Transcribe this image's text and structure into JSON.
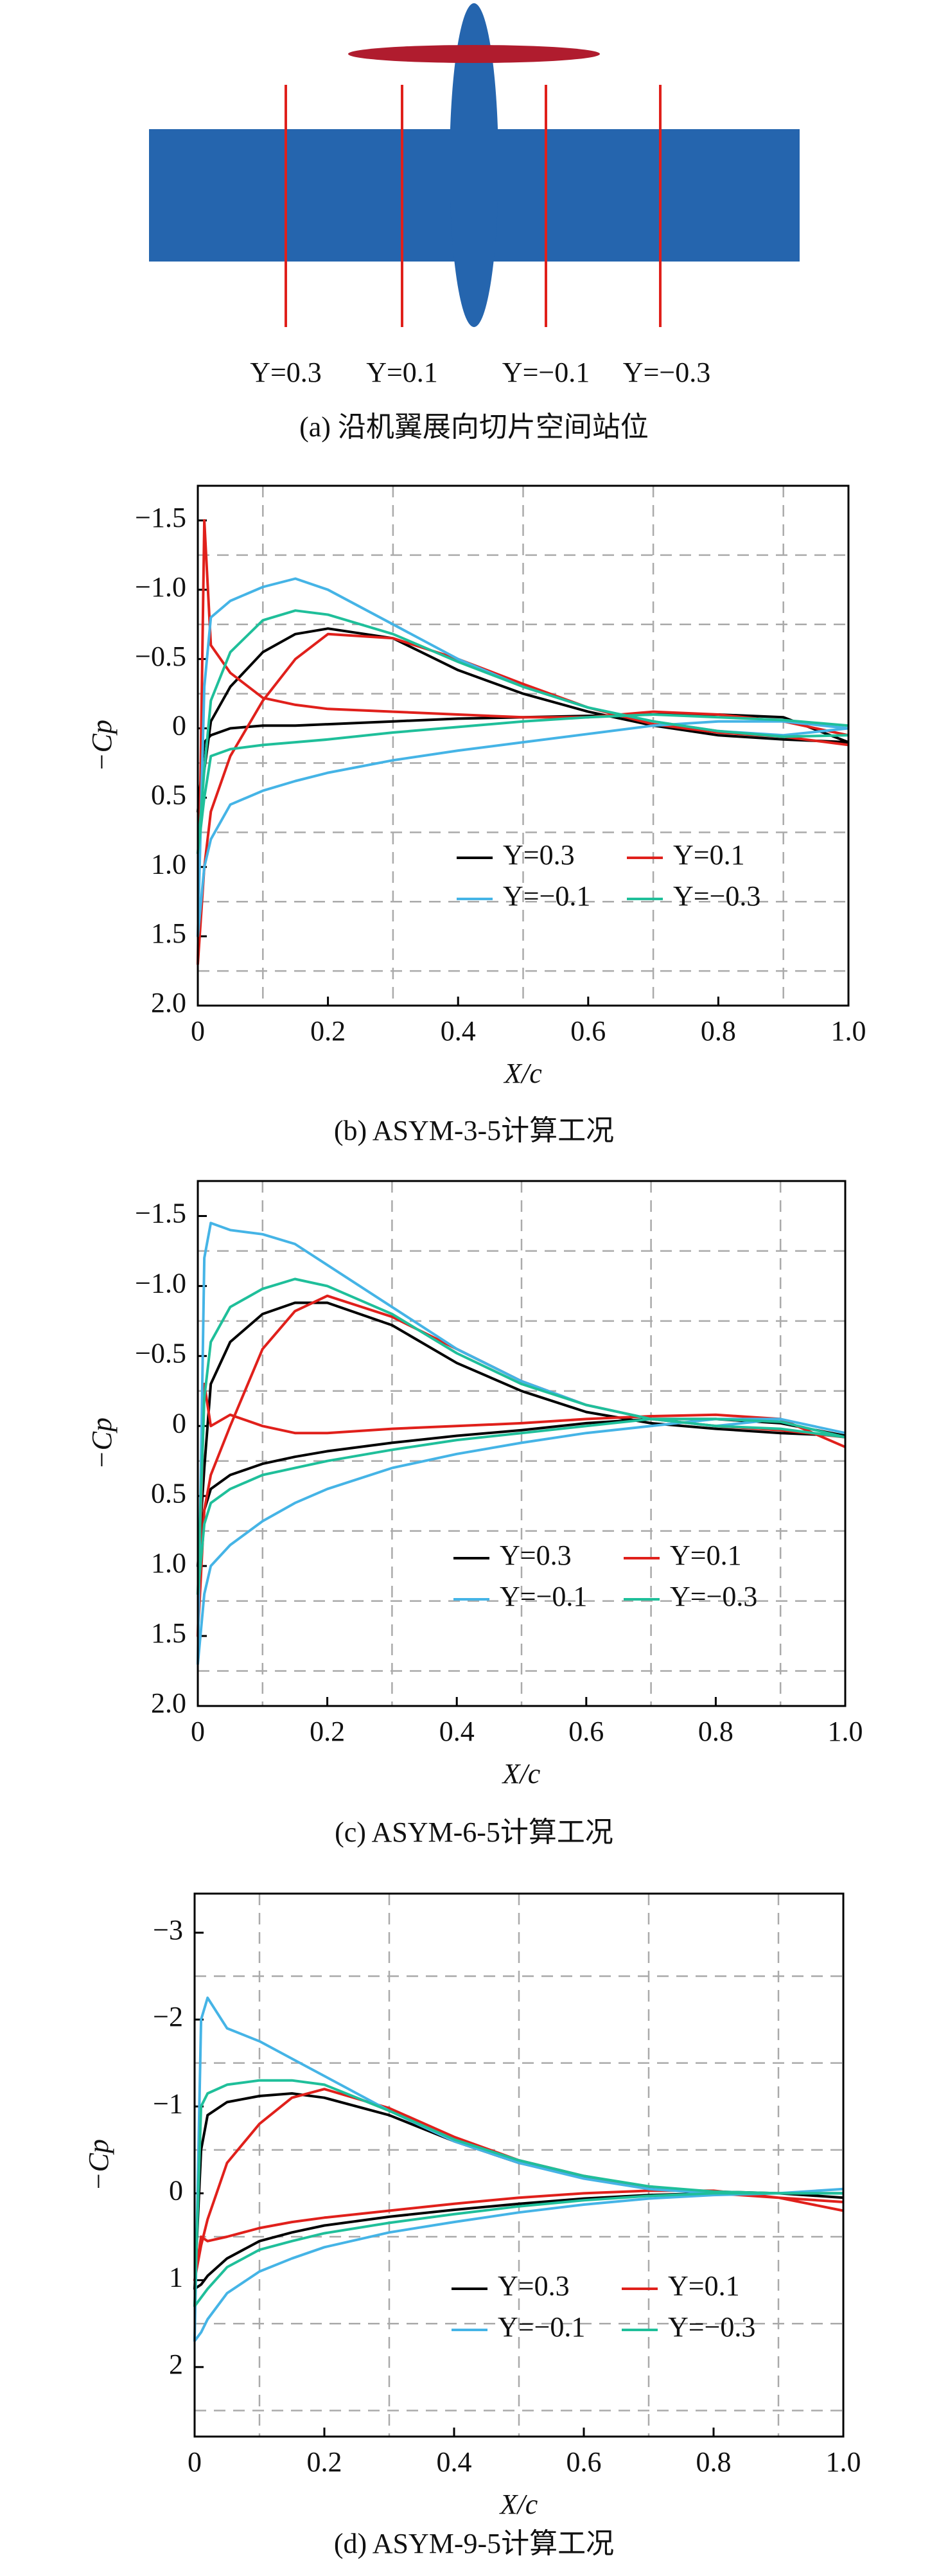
{
  "figure_a": {
    "labels": [
      "Y=0.3",
      "Y=0.1",
      "Y=−0.1",
      "Y=−0.3"
    ],
    "caption": "(a) 沿机翼展向切片空间站位"
  },
  "chart_data": [
    {
      "type": "line",
      "caption": "(b) ASYM-3-5计算工况",
      "xlabel": "X/c",
      "ylabel": "−Cp",
      "x": [
        1.0,
        0.9,
        0.8,
        0.7,
        0.6,
        0.5,
        0.4,
        0.3,
        0.2,
        0.15,
        0.1,
        0.05,
        0.02,
        0.01,
        0,
        0.01,
        0.02,
        0.05,
        0.1,
        0.15,
        0.2,
        0.3,
        0.4,
        0.5,
        0.6,
        0.7,
        0.8,
        0.9,
        1.0
      ],
      "xlim": [
        0,
        1
      ],
      "xticks": [
        0,
        0.2,
        0.4,
        0.6,
        0.8,
        {
          "value": 1,
          "label": "1.0"
        }
      ],
      "ylim": [
        2.0,
        -1.75
      ],
      "yticks": [
        {
          "value": -1.5,
          "label": "−1.5"
        },
        {
          "value": -1.0,
          "label": "−1.0"
        },
        {
          "value": -0.5,
          "label": "−0.5"
        },
        0,
        0.5,
        {
          "value": 1,
          "label": "1.0"
        },
        1.5,
        {
          "value": 2,
          "label": "2.0"
        }
      ],
      "xgrid": [
        0.1,
        0.3,
        0.5,
        0.7,
        0.9
      ],
      "ygrid": [
        -1.25,
        -0.75,
        -0.25,
        0.25,
        0.75,
        1.25,
        1.75
      ],
      "legend": "lower right",
      "series": [
        {
          "name": "Y=0.3",
          "color": "#000000",
          "values": [
            0.1,
            -0.08,
            -0.1,
            -0.1,
            -0.09,
            -0.08,
            -0.07,
            -0.05,
            -0.03,
            -0.02,
            -0.02,
            0.0,
            0.05,
            0.1,
            0.6,
            0.3,
            -0.05,
            -0.3,
            -0.55,
            -0.68,
            -0.72,
            -0.65,
            -0.42,
            -0.25,
            -0.12,
            -0.02,
            0.05,
            0.08,
            0.1
          ]
        },
        {
          "name": "Y=0.1",
          "color": "#e0201b",
          "values": [
            0.05,
            -0.05,
            -0.1,
            -0.12,
            -0.08,
            -0.08,
            -0.1,
            -0.12,
            -0.14,
            -0.17,
            -0.22,
            -0.4,
            -0.6,
            -1.5,
            1.7,
            1.0,
            0.6,
            0.2,
            -0.2,
            -0.5,
            -0.68,
            -0.65,
            -0.5,
            -0.32,
            -0.15,
            -0.03,
            0.03,
            0.06,
            0.12
          ]
        },
        {
          "name": "Y=−0.1",
          "color": "#45b4e6",
          "values": [
            0.0,
            -0.05,
            -0.05,
            -0.02,
            0.04,
            0.1,
            0.16,
            0.23,
            0.32,
            0.38,
            0.45,
            0.55,
            0.8,
            1.0,
            1.5,
            -0.3,
            -0.8,
            -0.92,
            -1.02,
            -1.08,
            -1.0,
            -0.75,
            -0.5,
            -0.3,
            -0.15,
            -0.05,
            0.02,
            0.05,
            0.0
          ]
        },
        {
          "name": "Y=−0.3",
          "color": "#1fbf9a",
          "values": [
            -0.02,
            -0.06,
            -0.08,
            -0.1,
            -0.08,
            -0.05,
            -0.01,
            0.03,
            0.08,
            0.1,
            0.12,
            0.15,
            0.2,
            0.5,
            0.9,
            0.3,
            -0.2,
            -0.55,
            -0.78,
            -0.85,
            -0.82,
            -0.68,
            -0.48,
            -0.3,
            -0.15,
            -0.05,
            0.02,
            0.06,
            0.05
          ]
        }
      ]
    },
    {
      "type": "line",
      "caption": "(c) ASYM-6-5计算工况",
      "xlabel": "X/c",
      "ylabel": "−Cp",
      "x": [
        1.0,
        0.9,
        0.8,
        0.7,
        0.6,
        0.5,
        0.4,
        0.3,
        0.2,
        0.15,
        0.1,
        0.05,
        0.02,
        0.01,
        0,
        0.01,
        0.02,
        0.05,
        0.1,
        0.15,
        0.2,
        0.3,
        0.4,
        0.5,
        0.6,
        0.7,
        0.8,
        0.9,
        1.0
      ],
      "xlim": [
        0,
        1
      ],
      "xticks": [
        0,
        0.2,
        0.4,
        0.6,
        0.8,
        {
          "value": 1,
          "label": "1.0"
        }
      ],
      "ylim": [
        2.0,
        -1.75
      ],
      "yticks": [
        {
          "value": -1.5,
          "label": "−1.5"
        },
        {
          "value": -1.0,
          "label": "−1.0"
        },
        {
          "value": -0.5,
          "label": "−0.5"
        },
        0,
        0.5,
        {
          "value": 1,
          "label": "1.0"
        },
        1.5,
        {
          "value": 2,
          "label": "2.0"
        }
      ],
      "xgrid": [
        0.1,
        0.3,
        0.5,
        0.7,
        0.9
      ],
      "ygrid": [
        -1.25,
        -0.75,
        -0.25,
        0.25,
        0.75,
        1.25,
        1.75
      ],
      "legend": "lower right",
      "series": [
        {
          "name": "Y=0.3",
          "color": "#000000",
          "values": [
            0.07,
            -0.02,
            -0.05,
            -0.05,
            -0.02,
            0.03,
            0.07,
            0.12,
            0.18,
            0.22,
            0.27,
            0.35,
            0.45,
            0.6,
            1.0,
            0.3,
            -0.3,
            -0.6,
            -0.8,
            -0.88,
            -0.88,
            -0.72,
            -0.45,
            -0.25,
            -0.1,
            -0.02,
            0.02,
            0.05,
            0.07
          ]
        },
        {
          "name": "Y=0.1",
          "color": "#e0201b",
          "values": [
            0.15,
            -0.05,
            -0.08,
            -0.07,
            -0.05,
            -0.02,
            0.0,
            0.02,
            0.05,
            0.05,
            0.0,
            -0.08,
            0.0,
            -0.3,
            1.5,
            0.6,
            0.35,
            0.0,
            -0.55,
            -0.82,
            -0.93,
            -0.78,
            -0.55,
            -0.32,
            -0.15,
            -0.05,
            0.0,
            0.03,
            0.08
          ]
        },
        {
          "name": "Y=−0.1",
          "color": "#45b4e6",
          "values": [
            0.05,
            -0.05,
            -0.05,
            0.0,
            0.05,
            0.12,
            0.2,
            0.3,
            0.45,
            0.55,
            0.68,
            0.85,
            1.0,
            1.2,
            1.7,
            -1.2,
            -1.45,
            -1.4,
            -1.37,
            -1.3,
            -1.15,
            -0.85,
            -0.55,
            -0.32,
            -0.15,
            -0.05,
            0.0,
            -0.05,
            0.05
          ]
        },
        {
          "name": "Y=−0.3",
          "color": "#1fbf9a",
          "values": [
            0.08,
            -0.03,
            -0.05,
            -0.05,
            0.0,
            0.05,
            0.1,
            0.17,
            0.25,
            0.3,
            0.35,
            0.45,
            0.55,
            0.7,
            1.2,
            -0.2,
            -0.6,
            -0.85,
            -0.98,
            -1.05,
            -1.0,
            -0.8,
            -0.52,
            -0.3,
            -0.15,
            -0.05,
            0.0,
            0.02,
            0.08
          ]
        }
      ]
    },
    {
      "type": "line",
      "caption": "(d) ASYM-9-5计算工况",
      "xlabel": "X/c",
      "ylabel": "−Cp",
      "x": [
        1.0,
        0.9,
        0.8,
        0.7,
        0.6,
        0.5,
        0.4,
        0.3,
        0.2,
        0.15,
        0.1,
        0.05,
        0.02,
        0.01,
        0,
        0.01,
        0.02,
        0.05,
        0.1,
        0.15,
        0.2,
        0.3,
        0.4,
        0.5,
        0.6,
        0.7,
        0.8,
        0.9,
        1.0
      ],
      "xlim": [
        0,
        1
      ],
      "xticks": [
        0,
        0.2,
        0.4,
        0.6,
        0.8,
        {
          "value": 1,
          "label": "1.0"
        }
      ],
      "ylim": [
        2.8,
        -3.45
      ],
      "yticks": [
        {
          "value": -3,
          "label": "−3"
        },
        {
          "value": -2,
          "label": "−2"
        },
        {
          "value": -1,
          "label": "−1"
        },
        0,
        1,
        2
      ],
      "xgrid": [
        0.1,
        0.3,
        0.5,
        0.7,
        0.9
      ],
      "ygrid": [
        -2.5,
        -1.5,
        -0.5,
        0.5,
        1.5,
        2.5
      ],
      "legend": "lower right",
      "series": [
        {
          "name": "Y=0.3",
          "color": "#000000",
          "values": [
            0.05,
            0.0,
            0.0,
            0.02,
            0.06,
            0.12,
            0.19,
            0.27,
            0.37,
            0.45,
            0.55,
            0.75,
            0.95,
            1.05,
            1.1,
            -0.5,
            -0.9,
            -1.05,
            -1.12,
            -1.15,
            -1.1,
            -0.9,
            -0.6,
            -0.35,
            -0.18,
            -0.07,
            -0.02,
            0.0,
            0.0
          ]
        },
        {
          "name": "Y=0.1",
          "color": "#e0201b",
          "values": [
            0.2,
            0.05,
            -0.03,
            -0.03,
            0.0,
            0.05,
            0.12,
            0.2,
            0.28,
            0.33,
            0.4,
            0.5,
            0.55,
            0.5,
            1.0,
            0.6,
            0.3,
            -0.35,
            -0.8,
            -1.1,
            -1.2,
            -0.98,
            -0.65,
            -0.38,
            -0.2,
            -0.07,
            0.0,
            0.05,
            0.1
          ]
        },
        {
          "name": "Y=−0.1",
          "color": "#45b4e6",
          "values": [
            0.0,
            0.0,
            0.02,
            0.06,
            0.13,
            0.22,
            0.33,
            0.45,
            0.62,
            0.75,
            0.9,
            1.15,
            1.45,
            1.6,
            1.7,
            -2.0,
            -2.25,
            -1.9,
            -1.75,
            -1.55,
            -1.35,
            -0.95,
            -0.6,
            -0.35,
            -0.17,
            -0.05,
            0.0,
            0.0,
            -0.05
          ]
        },
        {
          "name": "Y=−0.3",
          "color": "#1fbf9a",
          "values": [
            0.0,
            0.0,
            0.0,
            0.03,
            0.08,
            0.15,
            0.24,
            0.34,
            0.46,
            0.55,
            0.65,
            0.85,
            1.1,
            1.2,
            1.3,
            -1.0,
            -1.15,
            -1.25,
            -1.3,
            -1.3,
            -1.25,
            -0.95,
            -0.62,
            -0.38,
            -0.2,
            -0.08,
            -0.02,
            0.0,
            0.0
          ]
        }
      ]
    }
  ]
}
